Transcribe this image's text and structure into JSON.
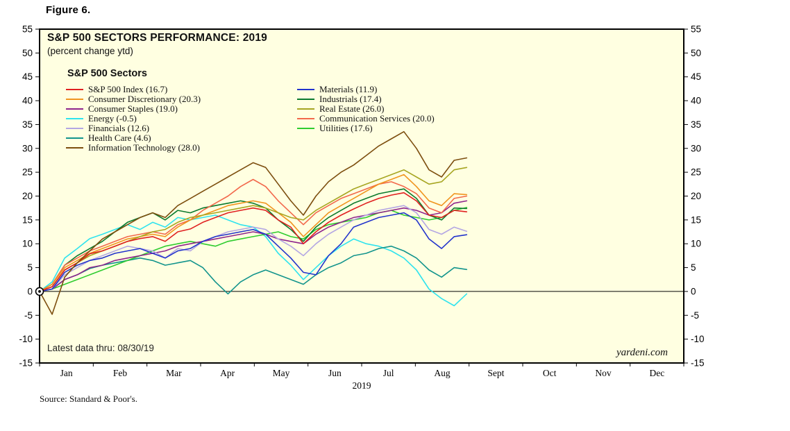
{
  "figure_label": "Figure 6.",
  "latest_data_note": "Latest data thru: 08/30/19",
  "watermark": "yardeni.com",
  "source": "Source: Standard & Poor's.",
  "chart_data": {
    "type": "line",
    "title": "S&P 500 SECTORS PERFORMANCE: 2019",
    "subtitle": "(percent change ytd)",
    "legend_title": "S&P 500 Sectors",
    "legend_position": "top-left",
    "background_color": "#FFFFE1",
    "grid": false,
    "zero_line": true,
    "ylim": [
      -15,
      55
    ],
    "y_ticks": [
      55,
      50,
      45,
      40,
      35,
      30,
      25,
      20,
      15,
      10,
      5,
      0,
      -5,
      -10,
      -15
    ],
    "y_axis_sides": "both",
    "x_tick_labels": [
      "Jan",
      "Feb",
      "Mar",
      "Apr",
      "May",
      "Jun",
      "Jul",
      "Aug",
      "Sept",
      "Oct",
      "Nov",
      "Dec"
    ],
    "xlabel": "2019",
    "data_end": "08/30/19",
    "data_end_fraction": 0.663,
    "series": [
      {
        "name": "S&P 500 Index",
        "label": "S&P 500 Index (16.7)",
        "ytd_pct": 16.7,
        "color": "#E02020",
        "legend_column": 1,
        "values": [
          0,
          1.0,
          4.5,
          6.0,
          7.9,
          8.5,
          9.5,
          10.5,
          11.1,
          11.5,
          10.5,
          12.5,
          13.1,
          14.5,
          15.5,
          16.5,
          17.0,
          17.5,
          17.0,
          15.0,
          13.5,
          10.0,
          12.5,
          14.5,
          16.0,
          17.3,
          18.5,
          19.5,
          20.2,
          20.7,
          19.0,
          16.0,
          15.5,
          17.0,
          16.7
        ]
      },
      {
        "name": "Consumer Discretionary",
        "label": "Consumer Discretionary (20.3)",
        "ytd_pct": 20.3,
        "color": "#F0941E",
        "legend_column": 1,
        "values": [
          0,
          1.5,
          5.0,
          6.5,
          8.0,
          9.0,
          10.0,
          11.0,
          11.5,
          12.0,
          11.5,
          13.5,
          15.0,
          16.0,
          17.0,
          18.0,
          18.5,
          19.0,
          18.5,
          16.5,
          14.5,
          11.5,
          14.0,
          16.5,
          18.0,
          19.5,
          21.0,
          22.5,
          23.5,
          24.5,
          22.0,
          19.0,
          18.0,
          20.5,
          20.3
        ]
      },
      {
        "name": "Consumer Staples",
        "label": "Consumer Staples (19.0)",
        "ytd_pct": 19.0,
        "color": "#8E248C",
        "legend_column": 1,
        "values": [
          0,
          0.5,
          2.5,
          3.5,
          5.0,
          5.5,
          6.5,
          7.0,
          7.5,
          8.0,
          8.5,
          9.5,
          10.0,
          10.5,
          11.0,
          11.5,
          12.0,
          12.5,
          12.0,
          11.0,
          10.5,
          10.0,
          12.0,
          13.5,
          14.5,
          15.5,
          16.0,
          16.5,
          17.0,
          17.5,
          17.0,
          16.0,
          16.5,
          18.5,
          19.0
        ]
      },
      {
        "name": "Energy",
        "label": "Energy (-0.5)",
        "ytd_pct": -0.5,
        "color": "#2FE3EE",
        "legend_column": 1,
        "values": [
          0,
          2.0,
          7.0,
          9.0,
          11.1,
          12.0,
          13.0,
          14.0,
          13.0,
          14.5,
          13.5,
          15.5,
          15.0,
          15.5,
          16.0,
          15.0,
          14.0,
          13.5,
          11.5,
          8.0,
          5.5,
          2.5,
          5.0,
          7.5,
          9.5,
          11.0,
          10.0,
          9.5,
          8.5,
          7.0,
          4.5,
          0.5,
          -1.5,
          -3.0,
          -0.5
        ]
      },
      {
        "name": "Financials",
        "label": "Financials (12.6)",
        "ytd_pct": 12.6,
        "color": "#B3A6E3",
        "legend_column": 1,
        "values": [
          0,
          0.5,
          3.5,
          5.0,
          6.5,
          7.5,
          8.5,
          9.5,
          9.0,
          8.5,
          7.0,
          9.0,
          8.5,
          10.5,
          11.5,
          12.5,
          13.0,
          13.5,
          13.0,
          11.0,
          9.5,
          7.5,
          10.0,
          12.0,
          13.5,
          15.0,
          16.0,
          17.0,
          17.5,
          18.0,
          16.5,
          13.0,
          12.0,
          13.5,
          12.6
        ]
      },
      {
        "name": "Health Care",
        "label": "Health Care (4.6)",
        "ytd_pct": 4.6,
        "color": "#12948C",
        "legend_column": 1,
        "values": [
          0,
          0.5,
          2.5,
          3.5,
          4.8,
          5.5,
          6.0,
          6.5,
          7.0,
          6.5,
          5.5,
          6.0,
          6.5,
          5.0,
          2.0,
          -0.5,
          2.0,
          3.5,
          4.5,
          3.5,
          2.5,
          1.5,
          3.5,
          5.0,
          6.0,
          7.5,
          8.0,
          9.0,
          9.5,
          8.5,
          7.0,
          4.5,
          3.0,
          5.0,
          4.6
        ]
      },
      {
        "name": "Information Technology",
        "label": "Information Technology (28.0)",
        "ytd_pct": 28.0,
        "color": "#7C4E0E",
        "legend_column": 1,
        "values": [
          0,
          -4.8,
          3.0,
          6.0,
          8.5,
          11.0,
          12.5,
          14.0,
          15.5,
          16.5,
          15.5,
          18.0,
          19.5,
          21.0,
          22.5,
          24.0,
          25.5,
          27.0,
          26.0,
          22.5,
          19.0,
          16.0,
          20.0,
          23.0,
          25.0,
          26.5,
          28.5,
          30.5,
          32.0,
          33.5,
          30.0,
          25.5,
          24.0,
          27.5,
          28.0
        ]
      },
      {
        "name": "Materials",
        "label": "Materials (11.9)",
        "ytd_pct": 11.9,
        "color": "#2233CC",
        "legend_column": 2,
        "values": [
          0,
          0.5,
          4.0,
          5.5,
          6.5,
          7.0,
          8.0,
          8.5,
          9.0,
          8.0,
          7.0,
          8.5,
          9.0,
          10.5,
          11.5,
          12.0,
          12.5,
          13.0,
          12.0,
          9.5,
          7.0,
          4.0,
          3.5,
          7.5,
          10.0,
          13.5,
          14.5,
          15.5,
          16.0,
          16.5,
          15.0,
          11.0,
          9.0,
          11.5,
          11.9
        ]
      },
      {
        "name": "Industrials",
        "label": "Industrials (17.4)",
        "ytd_pct": 17.4,
        "color": "#0B7A2E",
        "legend_column": 2,
        "values": [
          0,
          1.5,
          5.5,
          7.5,
          9.0,
          10.5,
          12.5,
          14.5,
          15.5,
          16.5,
          15.0,
          17.0,
          16.5,
          17.5,
          18.0,
          18.5,
          19.0,
          18.5,
          17.5,
          15.0,
          13.0,
          10.5,
          13.5,
          15.5,
          17.0,
          18.5,
          19.5,
          20.5,
          21.0,
          21.5,
          19.5,
          16.0,
          15.0,
          17.5,
          17.4
        ]
      },
      {
        "name": "Real Estate",
        "label": "Real Estate (26.0)",
        "ytd_pct": 26.0,
        "color": "#A6A521",
        "legend_column": 2,
        "values": [
          0,
          1.0,
          4.5,
          6.0,
          7.5,
          8.5,
          9.5,
          10.5,
          11.5,
          12.5,
          13.0,
          14.5,
          15.5,
          16.0,
          16.5,
          17.0,
          17.5,
          18.0,
          17.5,
          16.5,
          15.5,
          15.0,
          17.0,
          18.5,
          20.0,
          21.5,
          22.5,
          23.5,
          24.5,
          25.5,
          24.0,
          22.5,
          23.0,
          25.5,
          26.0
        ]
      },
      {
        "name": "Communication Services",
        "label": "Communication Services (20.0)",
        "ytd_pct": 20.0,
        "color": "#F2684B",
        "legend_column": 2,
        "values": [
          0,
          1.5,
          5.5,
          7.0,
          8.5,
          9.5,
          10.5,
          11.5,
          12.0,
          12.5,
          12.0,
          14.0,
          15.0,
          17.0,
          18.5,
          20.0,
          22.0,
          23.5,
          22.0,
          19.0,
          16.5,
          14.0,
          16.5,
          18.0,
          19.5,
          20.5,
          21.5,
          22.5,
          23.0,
          22.0,
          20.5,
          17.5,
          16.5,
          19.5,
          20.0
        ]
      },
      {
        "name": "Utilities",
        "label": "Utilities (17.6)",
        "ytd_pct": 17.6,
        "color": "#2FCC2F",
        "legend_column": 2,
        "values": [
          0,
          0.5,
          1.5,
          2.5,
          3.5,
          4.5,
          5.5,
          6.5,
          7.5,
          8.5,
          9.5,
          10.0,
          10.5,
          10.0,
          9.5,
          10.5,
          11.0,
          11.5,
          12.0,
          12.5,
          11.5,
          11.0,
          13.0,
          14.0,
          14.5,
          15.0,
          15.5,
          16.5,
          17.0,
          16.0,
          15.5,
          15.0,
          15.5,
          17.0,
          17.6
        ]
      }
    ]
  }
}
